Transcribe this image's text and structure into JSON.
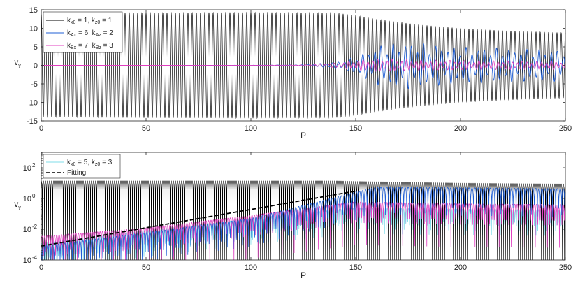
{
  "chart_data": [
    {
      "type": "line",
      "title": "",
      "xlabel": "P",
      "ylabel": "v_y",
      "xlim": [
        0,
        250
      ],
      "ylim": [
        -15,
        15
      ],
      "x_ticks": [
        "0",
        "50",
        "100",
        "150",
        "200",
        "250"
      ],
      "y_ticks": [
        "-15",
        "-10",
        "-5",
        "0",
        "5",
        "10",
        "15"
      ],
      "legend_position": "top-left",
      "grid": false,
      "series": [
        {
          "name": "k_x0 = 1, k_z0 = 1",
          "color": "#000000",
          "period": 2,
          "envelope": [
            [
              0,
              14
            ],
            [
              50,
              14.2
            ],
            [
              100,
              14.3
            ],
            [
              140,
              14.2
            ],
            [
              150,
              13.5
            ],
            [
              160,
              12.5
            ],
            [
              180,
              11
            ],
            [
              200,
              10
            ],
            [
              220,
              9.4
            ],
            [
              250,
              8.8
            ]
          ]
        },
        {
          "name": "k_Ax = 6, k_Az = 2",
          "color": "#1f5fd6",
          "period": 2.9,
          "envelope": [
            [
              0,
              0.0008
            ],
            [
              50,
              0.006
            ],
            [
              100,
              0.04
            ],
            [
              120,
              0.15
            ],
            [
              140,
              0.9
            ],
            [
              150,
              2.5
            ],
            [
              160,
              5.5
            ],
            [
              175,
              6.3
            ],
            [
              200,
              5
            ],
            [
              225,
              4.6
            ],
            [
              250,
              4.3
            ]
          ]
        },
        {
          "name": "k_Bx = 7, k_Bz = 3",
          "color": "#e040c0",
          "period": 2.3,
          "envelope": [
            [
              0,
              0.0004
            ],
            [
              50,
              0.003
            ],
            [
              100,
              0.02
            ],
            [
              120,
              0.1
            ],
            [
              140,
              0.6
            ],
            [
              150,
              1.4
            ],
            [
              160,
              1.7
            ],
            [
              200,
              1.3
            ],
            [
              250,
              1.1
            ]
          ]
        }
      ]
    },
    {
      "type": "line",
      "title": "",
      "xlabel": "P",
      "ylabel": "v_y",
      "xlim": [
        0,
        250
      ],
      "ylim": [
        0.0001,
        1000
      ],
      "yscale": "log",
      "x_ticks": [
        "0",
        "50",
        "100",
        "150",
        "200",
        "250"
      ],
      "y_ticks": [
        {
          "base": "10",
          "exp": "-4",
          "value": 0.0001
        },
        {
          "base": "10",
          "exp": "-2",
          "value": 0.01
        },
        {
          "base": "10",
          "exp": "0",
          "value": 1
        },
        {
          "base": "10",
          "exp": "2",
          "value": 100
        }
      ],
      "legend_position": "top-left",
      "grid": false,
      "series": [
        {
          "name": "",
          "color": "#000000",
          "peak": [
            [
              0,
              14
            ],
            [
              140,
              14
            ],
            [
              150,
              13
            ],
            [
              200,
              10
            ],
            [
              250,
              8.8
            ]
          ]
        },
        {
          "name": "",
          "color": "#1f5fd6",
          "peak": [
            [
              0,
              0.0008
            ],
            [
              50,
              0.006
            ],
            [
              100,
              0.05
            ],
            [
              150,
              2.6
            ],
            [
              160,
              5.5
            ],
            [
              200,
              5
            ],
            [
              250,
              4.3
            ]
          ]
        },
        {
          "name": "",
          "color": "#e040c0",
          "peak": [
            [
              0,
              0.0035
            ],
            [
              50,
              0.012
            ],
            [
              100,
              0.08
            ],
            [
              150,
              0.6
            ],
            [
              200,
              0.45
            ],
            [
              250,
              0.4
            ]
          ]
        },
        {
          "name": "k_x0 = 5, k_z0 = 3",
          "color": "#7fdcea",
          "peak": [
            [
              0,
              0.0012
            ],
            [
              50,
              0.008
            ],
            [
              100,
              0.05
            ],
            [
              150,
              0.25
            ],
            [
              200,
              0.2
            ],
            [
              250,
              0.18
            ]
          ]
        },
        {
          "name": "Fitting",
          "color": "#000000",
          "style": "dashed",
          "x": [
            0,
            150
          ],
          "y": [
            0.0008,
            3
          ]
        }
      ]
    }
  ]
}
